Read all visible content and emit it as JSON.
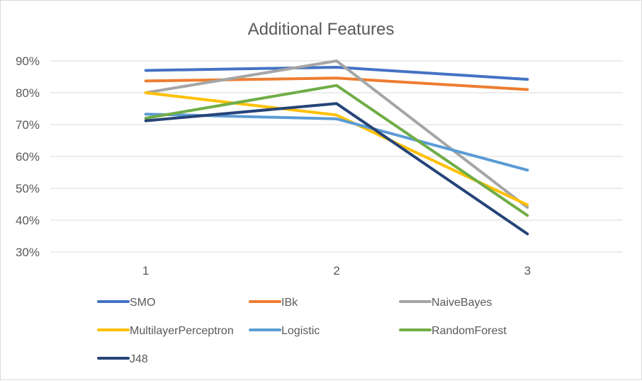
{
  "chart_data": {
    "type": "line",
    "title": "Additional Features",
    "xlabel": "",
    "ylabel": "",
    "x": [
      "1",
      "2",
      "3"
    ],
    "ylim": [
      0.3,
      0.9
    ],
    "yticks": [
      0.3,
      0.4,
      0.5,
      0.6,
      0.7,
      0.8,
      0.9
    ],
    "ytick_labels": [
      "30%",
      "40%",
      "50%",
      "60%",
      "70%",
      "80%",
      "90%"
    ],
    "grid": true,
    "legend_position": "bottom",
    "series": [
      {
        "name": "SMO",
        "color": "#4472C4",
        "values": [
          0.87,
          0.88,
          0.842
        ]
      },
      {
        "name": "IBk",
        "color": "#ED7D31",
        "values": [
          0.837,
          0.846,
          0.81
        ]
      },
      {
        "name": "NaiveBayes",
        "color": "#A5A5A5",
        "values": [
          0.8,
          0.9,
          0.44
        ]
      },
      {
        "name": "MultilayerPerceptron",
        "color": "#FFC000",
        "values": [
          0.8,
          0.73,
          0.448
        ]
      },
      {
        "name": "Logistic",
        "color": "#5B9BD5",
        "values": [
          0.733,
          0.718,
          0.557
        ]
      },
      {
        "name": "RandomForest",
        "color": "#70AD47",
        "values": [
          0.72,
          0.823,
          0.415
        ]
      },
      {
        "name": "J48",
        "color": "#264478",
        "values": [
          0.712,
          0.766,
          0.357
        ]
      }
    ]
  }
}
